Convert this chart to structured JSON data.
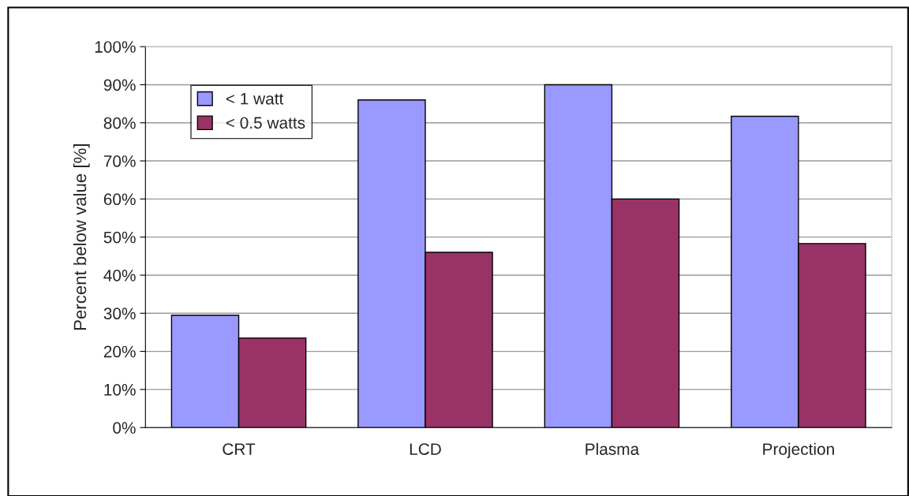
{
  "chart_data": {
    "type": "bar",
    "ylabel": "Percent below value [%]",
    "categories": [
      "CRT",
      "LCD",
      "Plasma",
      "Projection"
    ],
    "series": [
      {
        "name": "< 1 watt",
        "color": "#9999ff",
        "values": [
          29.5,
          86,
          90,
          81.7
        ]
      },
      {
        "name": "< 0.5 watts",
        "color": "#993366",
        "values": [
          23.5,
          46,
          60,
          48.3
        ]
      }
    ],
    "ylim": [
      0,
      100
    ],
    "yticks": [
      {
        "value": 0,
        "label": "0%"
      },
      {
        "value": 10,
        "label": "10%"
      },
      {
        "value": 20,
        "label": "20%"
      },
      {
        "value": 30,
        "label": "30%"
      },
      {
        "value": 40,
        "label": "40%"
      },
      {
        "value": 50,
        "label": "50%"
      },
      {
        "value": 60,
        "label": "60%"
      },
      {
        "value": 70,
        "label": "70%"
      },
      {
        "value": 80,
        "label": "80%"
      },
      {
        "value": 90,
        "label": "90%"
      },
      {
        "value": 100,
        "label": "100%"
      }
    ],
    "grid": "y",
    "legend": "top left"
  }
}
